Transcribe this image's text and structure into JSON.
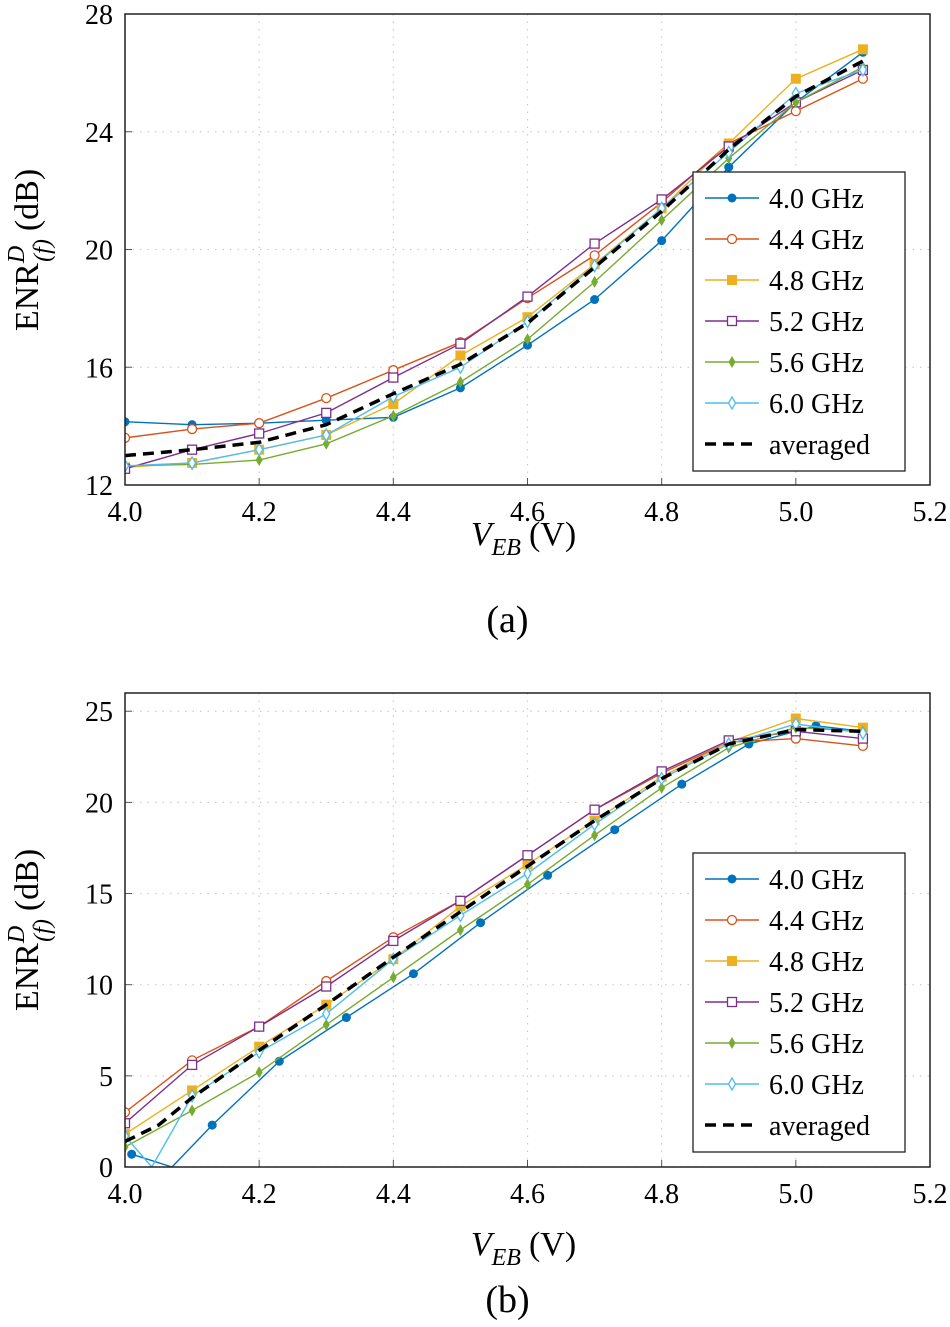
{
  "chart_data": [
    {
      "type": "line",
      "caption": "(a)",
      "xlabel": {
        "main": "V",
        "sub": "EB",
        "unit": "(V)"
      },
      "ylabel": {
        "main": "ENR",
        "sup": "D",
        "sub": "(f)",
        "unit": "(dB)"
      },
      "xlim": [
        4.0,
        5.2
      ],
      "ylim": [
        12,
        28
      ],
      "xticks": [
        "4.0",
        "4.2",
        "4.4",
        "4.6",
        "4.8",
        "5.0",
        "5.2"
      ],
      "yticks": [
        "12",
        "16",
        "20",
        "24",
        "28"
      ],
      "grid": true,
      "legend_position": "right",
      "series": [
        {
          "name": "4.0 GHz",
          "color": "#0072BD",
          "marker": "filled-circle",
          "x": [
            4.0,
            4.1,
            4.2,
            4.3,
            4.4,
            4.5,
            4.6,
            4.7,
            4.8,
            4.9,
            5.0,
            5.1
          ],
          "y": [
            14.15,
            14.05,
            14.1,
            14.2,
            14.3,
            15.3,
            16.75,
            18.3,
            20.3,
            22.8,
            25.0,
            26.7
          ]
        },
        {
          "name": "4.4 GHz",
          "color": "#D95319",
          "marker": "open-circle",
          "x": [
            4.0,
            4.1,
            4.2,
            4.3,
            4.4,
            4.5,
            4.6,
            4.7,
            4.8,
            4.9,
            5.0,
            5.1
          ],
          "y": [
            13.6,
            13.9,
            14.1,
            14.95,
            15.9,
            16.85,
            18.35,
            19.8,
            21.6,
            23.6,
            24.7,
            25.8
          ]
        },
        {
          "name": "4.8 GHz",
          "color": "#EDB120",
          "marker": "filled-square",
          "x": [
            4.0,
            4.1,
            4.2,
            4.3,
            4.4,
            4.5,
            4.6,
            4.7,
            4.8,
            4.9,
            5.0,
            5.1
          ],
          "y": [
            12.6,
            12.75,
            13.2,
            13.7,
            14.75,
            16.4,
            17.7,
            19.5,
            21.4,
            23.6,
            25.8,
            26.8
          ]
        },
        {
          "name": "5.2 GHz",
          "color": "#7E2F8E",
          "marker": "open-square",
          "x": [
            4.0,
            4.1,
            4.2,
            4.3,
            4.4,
            4.5,
            4.6,
            4.7,
            4.8,
            4.9,
            5.0,
            5.1
          ],
          "y": [
            12.55,
            13.2,
            13.75,
            14.45,
            15.65,
            16.8,
            18.4,
            20.2,
            21.7,
            23.5,
            25.0,
            26.1
          ]
        },
        {
          "name": "5.6 GHz",
          "color": "#77AC30",
          "marker": "filled-diamond",
          "x": [
            4.0,
            4.1,
            4.2,
            4.3,
            4.4,
            4.5,
            4.6,
            4.7,
            4.8,
            4.9,
            5.0,
            5.1
          ],
          "y": [
            12.65,
            12.7,
            12.85,
            13.4,
            14.35,
            15.5,
            16.95,
            18.9,
            21.0,
            23.1,
            25.0,
            26.2
          ]
        },
        {
          "name": "6.0 GHz",
          "color": "#4DBEEE",
          "marker": "open-diamond",
          "x": [
            4.0,
            4.1,
            4.2,
            4.3,
            4.4,
            4.5,
            4.6,
            4.7,
            4.8,
            4.9,
            5.0,
            5.1
          ],
          "y": [
            12.65,
            12.75,
            13.2,
            13.7,
            15.0,
            16.0,
            17.55,
            19.45,
            21.4,
            23.3,
            25.3,
            26.1
          ]
        },
        {
          "name": "averaged",
          "color": "#000000",
          "marker": "none",
          "dashed": true,
          "x": [
            4.0,
            4.1,
            4.2,
            4.3,
            4.4,
            4.5,
            4.6,
            4.7,
            4.8,
            4.9,
            5.0,
            5.1
          ],
          "y": [
            13.0,
            13.2,
            13.45,
            14.05,
            15.1,
            16.1,
            17.5,
            19.4,
            21.3,
            23.4,
            25.2,
            26.4
          ]
        }
      ]
    },
    {
      "type": "line",
      "caption": "(b)",
      "xlabel": {
        "main": "V",
        "sub": "EB",
        "unit": "(V)"
      },
      "ylabel": {
        "main": "ENR",
        "sup": "D",
        "sub": "(f)",
        "unit": "(dB)"
      },
      "xlim": [
        4.0,
        5.2
      ],
      "ylim": [
        0,
        26
      ],
      "xticks": [
        "4.0",
        "4.2",
        "4.4",
        "4.6",
        "4.8",
        "5.0",
        "5.2"
      ],
      "yticks": [
        "0",
        "5",
        "10",
        "15",
        "20",
        "25"
      ],
      "grid": true,
      "legend_position": "right",
      "series": [
        {
          "name": "4.0 GHz",
          "color": "#0072BD",
          "marker": "filled-circle",
          "x": [
            4.01,
            4.07,
            4.13,
            4.23,
            4.33,
            4.43,
            4.53,
            4.63,
            4.73,
            4.83,
            4.93,
            5.03,
            5.1
          ],
          "y": [
            0.7,
            0.0,
            2.3,
            5.8,
            8.2,
            10.6,
            13.4,
            16.0,
            18.5,
            21.0,
            23.2,
            24.2,
            23.9
          ]
        },
        {
          "name": "4.4 GHz",
          "color": "#D95319",
          "marker": "open-circle",
          "x": [
            4.0,
            4.1,
            4.2,
            4.3,
            4.4,
            4.5,
            4.6,
            4.7,
            4.8,
            4.9,
            5.0,
            5.1
          ],
          "y": [
            3.0,
            5.85,
            7.7,
            10.2,
            12.6,
            14.6,
            17.1,
            19.6,
            21.6,
            23.3,
            23.5,
            23.1
          ]
        },
        {
          "name": "4.8 GHz",
          "color": "#EDB120",
          "marker": "filled-square",
          "x": [
            4.0,
            4.1,
            4.2,
            4.3,
            4.4,
            4.5,
            4.6,
            4.7,
            4.8,
            4.9,
            5.0,
            5.1
          ],
          "y": [
            1.8,
            4.2,
            6.6,
            8.9,
            11.4,
            14.3,
            16.6,
            19.0,
            21.4,
            23.3,
            24.6,
            24.1
          ]
        },
        {
          "name": "5.2 GHz",
          "color": "#7E2F8E",
          "marker": "open-square",
          "x": [
            4.0,
            4.1,
            4.2,
            4.3,
            4.4,
            4.5,
            4.6,
            4.7,
            4.8,
            4.9,
            5.0,
            5.1
          ],
          "y": [
            2.4,
            5.6,
            7.7,
            9.9,
            12.4,
            14.6,
            17.1,
            19.6,
            21.7,
            23.4,
            23.9,
            23.5
          ]
        },
        {
          "name": "5.6 GHz",
          "color": "#77AC30",
          "marker": "filled-diamond",
          "x": [
            4.0,
            4.1,
            4.2,
            4.3,
            4.4,
            4.5,
            4.6,
            4.7,
            4.8,
            4.9,
            5.0,
            5.1
          ],
          "y": [
            1.1,
            3.1,
            5.2,
            7.8,
            10.4,
            13.0,
            15.5,
            18.2,
            20.8,
            23.0,
            24.1,
            23.9
          ]
        },
        {
          "name": "6.0 GHz",
          "color": "#4DBEEE",
          "marker": "open-diamond",
          "x": [
            4.0,
            4.04,
            4.1,
            4.2,
            4.3,
            4.4,
            4.5,
            4.6,
            4.7,
            4.8,
            4.9,
            5.0,
            5.1
          ],
          "y": [
            1.7,
            0.0,
            3.9,
            6.3,
            8.4,
            11.4,
            13.8,
            16.1,
            18.8,
            21.3,
            23.2,
            24.3,
            23.8
          ]
        },
        {
          "name": "averaged",
          "color": "#000000",
          "marker": "none",
          "dashed": true,
          "x": [
            4.0,
            4.05,
            4.1,
            4.2,
            4.3,
            4.4,
            4.5,
            4.6,
            4.7,
            4.8,
            4.9,
            5.0,
            5.1
          ],
          "y": [
            1.4,
            2.3,
            3.8,
            6.4,
            8.9,
            11.5,
            14.0,
            16.5,
            19.0,
            21.3,
            23.2,
            24.0,
            23.9
          ]
        }
      ]
    }
  ]
}
